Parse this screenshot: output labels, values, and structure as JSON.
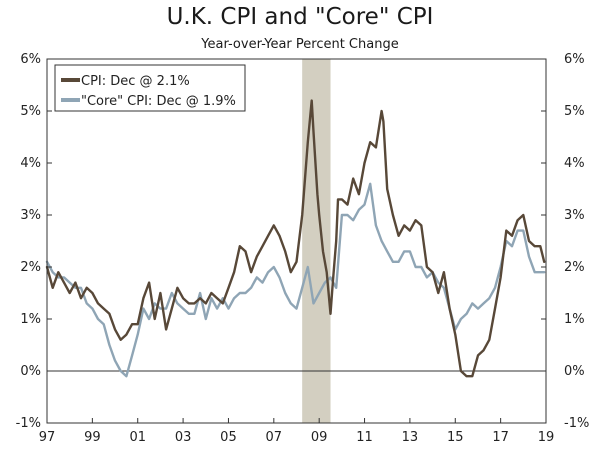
{
  "chart_data": {
    "type": "line",
    "title": "U.K. CPI and \"Core\" CPI",
    "subtitle": "Year-over-Year Percent Change",
    "ylim": [
      -1,
      6
    ],
    "yticks": [
      "-1%",
      "0%",
      "1%",
      "2%",
      "3%",
      "4%",
      "5%",
      "6%"
    ],
    "xlim": [
      1997,
      2019
    ],
    "xticks": [
      {
        "year": 1997,
        "label": "97"
      },
      {
        "year": 1999,
        "label": "99"
      },
      {
        "year": 2001,
        "label": "01"
      },
      {
        "year": 2003,
        "label": "03"
      },
      {
        "year": 2005,
        "label": "05"
      },
      {
        "year": 2007,
        "label": "07"
      },
      {
        "year": 2009,
        "label": "09"
      },
      {
        "year": 2011,
        "label": "11"
      },
      {
        "year": 2013,
        "label": "13"
      },
      {
        "year": 2015,
        "label": "15"
      },
      {
        "year": 2017,
        "label": "17"
      },
      {
        "year": 2019,
        "label": "19"
      }
    ],
    "recession": {
      "start": 2008.25,
      "end": 2009.5,
      "color": "#d3cfc1"
    },
    "legend_position": "top-left",
    "series": [
      {
        "name": "CPI: Dec @ 2.1%",
        "color": "#584838",
        "x": [
          1997.0,
          1997.25,
          1997.5,
          1997.75,
          1998.0,
          1998.25,
          1998.5,
          1998.75,
          1999.0,
          1999.25,
          1999.5,
          1999.75,
          2000.0,
          2000.25,
          2000.5,
          2000.75,
          2001.0,
          2001.25,
          2001.5,
          2001.75,
          2002.0,
          2002.25,
          2002.5,
          2002.75,
          2003.0,
          2003.25,
          2003.5,
          2003.75,
          2004.0,
          2004.25,
          2004.5,
          2004.75,
          2005.0,
          2005.25,
          2005.5,
          2005.75,
          2006.0,
          2006.25,
          2006.5,
          2006.75,
          2007.0,
          2007.25,
          2007.5,
          2007.75,
          2008.0,
          2008.25,
          2008.5,
          2008.67,
          2008.75,
          2008.92,
          2009.0,
          2009.17,
          2009.33,
          2009.5,
          2009.6,
          2009.75,
          2009.83,
          2010.0,
          2010.25,
          2010.5,
          2010.75,
          2011.0,
          2011.25,
          2011.5,
          2011.75,
          2011.83,
          2012.0,
          2012.25,
          2012.5,
          2012.75,
          2013.0,
          2013.25,
          2013.5,
          2013.75,
          2014.0,
          2014.25,
          2014.5,
          2014.75,
          2015.0,
          2015.25,
          2015.5,
          2015.75,
          2016.0,
          2016.25,
          2016.5,
          2016.75,
          2017.0,
          2017.25,
          2017.5,
          2017.75,
          2018.0,
          2018.25,
          2018.5,
          2018.75,
          2018.92
        ],
        "values": [
          2.0,
          1.6,
          1.9,
          1.7,
          1.5,
          1.7,
          1.4,
          1.6,
          1.5,
          1.3,
          1.2,
          1.1,
          0.8,
          0.6,
          0.7,
          0.9,
          0.9,
          1.4,
          1.7,
          1.0,
          1.5,
          0.8,
          1.2,
          1.6,
          1.4,
          1.3,
          1.3,
          1.4,
          1.3,
          1.5,
          1.4,
          1.3,
          1.6,
          1.9,
          2.4,
          2.3,
          1.9,
          2.2,
          2.4,
          2.6,
          2.8,
          2.6,
          2.3,
          1.9,
          2.1,
          3.0,
          4.4,
          5.2,
          4.6,
          3.4,
          3.0,
          2.3,
          1.9,
          1.1,
          1.7,
          2.5,
          3.3,
          3.3,
          3.2,
          3.7,
          3.4,
          4.0,
          4.4,
          4.3,
          5.0,
          4.8,
          3.5,
          3.0,
          2.6,
          2.8,
          2.7,
          2.9,
          2.8,
          2.0,
          1.9,
          1.5,
          1.9,
          1.2,
          0.7,
          0.0,
          -0.1,
          -0.1,
          0.3,
          0.4,
          0.6,
          1.2,
          1.8,
          2.7,
          2.6,
          2.9,
          3.0,
          2.5,
          2.4,
          2.4,
          2.1
        ]
      },
      {
        "name": "\"Core\" CPI: Dec @ 1.9%",
        "color": "#8fa5b5",
        "x": [
          1997.0,
          1997.25,
          1997.5,
          1997.75,
          1998.0,
          1998.25,
          1998.5,
          1998.75,
          1999.0,
          1999.25,
          1999.5,
          1999.75,
          2000.0,
          2000.25,
          2000.5,
          2000.75,
          2001.0,
          2001.25,
          2001.5,
          2001.75,
          2002.0,
          2002.25,
          2002.5,
          2002.75,
          2003.0,
          2003.25,
          2003.5,
          2003.75,
          2004.0,
          2004.25,
          2004.5,
          2004.75,
          2005.0,
          2005.25,
          2005.5,
          2005.75,
          2006.0,
          2006.25,
          2006.5,
          2006.75,
          2007.0,
          2007.25,
          2007.5,
          2007.75,
          2008.0,
          2008.25,
          2008.5,
          2008.75,
          2009.0,
          2009.25,
          2009.5,
          2009.75,
          2010.0,
          2010.25,
          2010.5,
          2010.75,
          2011.0,
          2011.25,
          2011.5,
          2011.75,
          2012.0,
          2012.25,
          2012.5,
          2012.75,
          2013.0,
          2013.25,
          2013.5,
          2013.75,
          2014.0,
          2014.25,
          2014.5,
          2014.75,
          2015.0,
          2015.25,
          2015.5,
          2015.75,
          2016.0,
          2016.25,
          2016.5,
          2016.75,
          2017.0,
          2017.25,
          2017.5,
          2017.75,
          2018.0,
          2018.25,
          2018.5,
          2018.75,
          2018.92
        ],
        "values": [
          2.1,
          1.9,
          1.8,
          1.8,
          1.7,
          1.6,
          1.6,
          1.3,
          1.2,
          1.0,
          0.9,
          0.5,
          0.2,
          0.0,
          -0.1,
          0.3,
          0.7,
          1.2,
          1.0,
          1.3,
          1.2,
          1.2,
          1.5,
          1.3,
          1.2,
          1.1,
          1.1,
          1.5,
          1.0,
          1.4,
          1.2,
          1.4,
          1.2,
          1.4,
          1.5,
          1.5,
          1.6,
          1.8,
          1.7,
          1.9,
          2.0,
          1.8,
          1.5,
          1.3,
          1.2,
          1.6,
          2.0,
          1.3,
          1.5,
          1.7,
          1.8,
          1.6,
          3.0,
          3.0,
          2.9,
          3.1,
          3.2,
          3.6,
          2.8,
          2.5,
          2.3,
          2.1,
          2.1,
          2.3,
          2.3,
          2.0,
          2.0,
          1.8,
          1.9,
          1.7,
          1.6,
          1.2,
          0.8,
          1.0,
          1.1,
          1.3,
          1.2,
          1.3,
          1.4,
          1.6,
          2.0,
          2.5,
          2.4,
          2.7,
          2.7,
          2.2,
          1.9,
          1.9,
          1.9
        ]
      }
    ]
  }
}
